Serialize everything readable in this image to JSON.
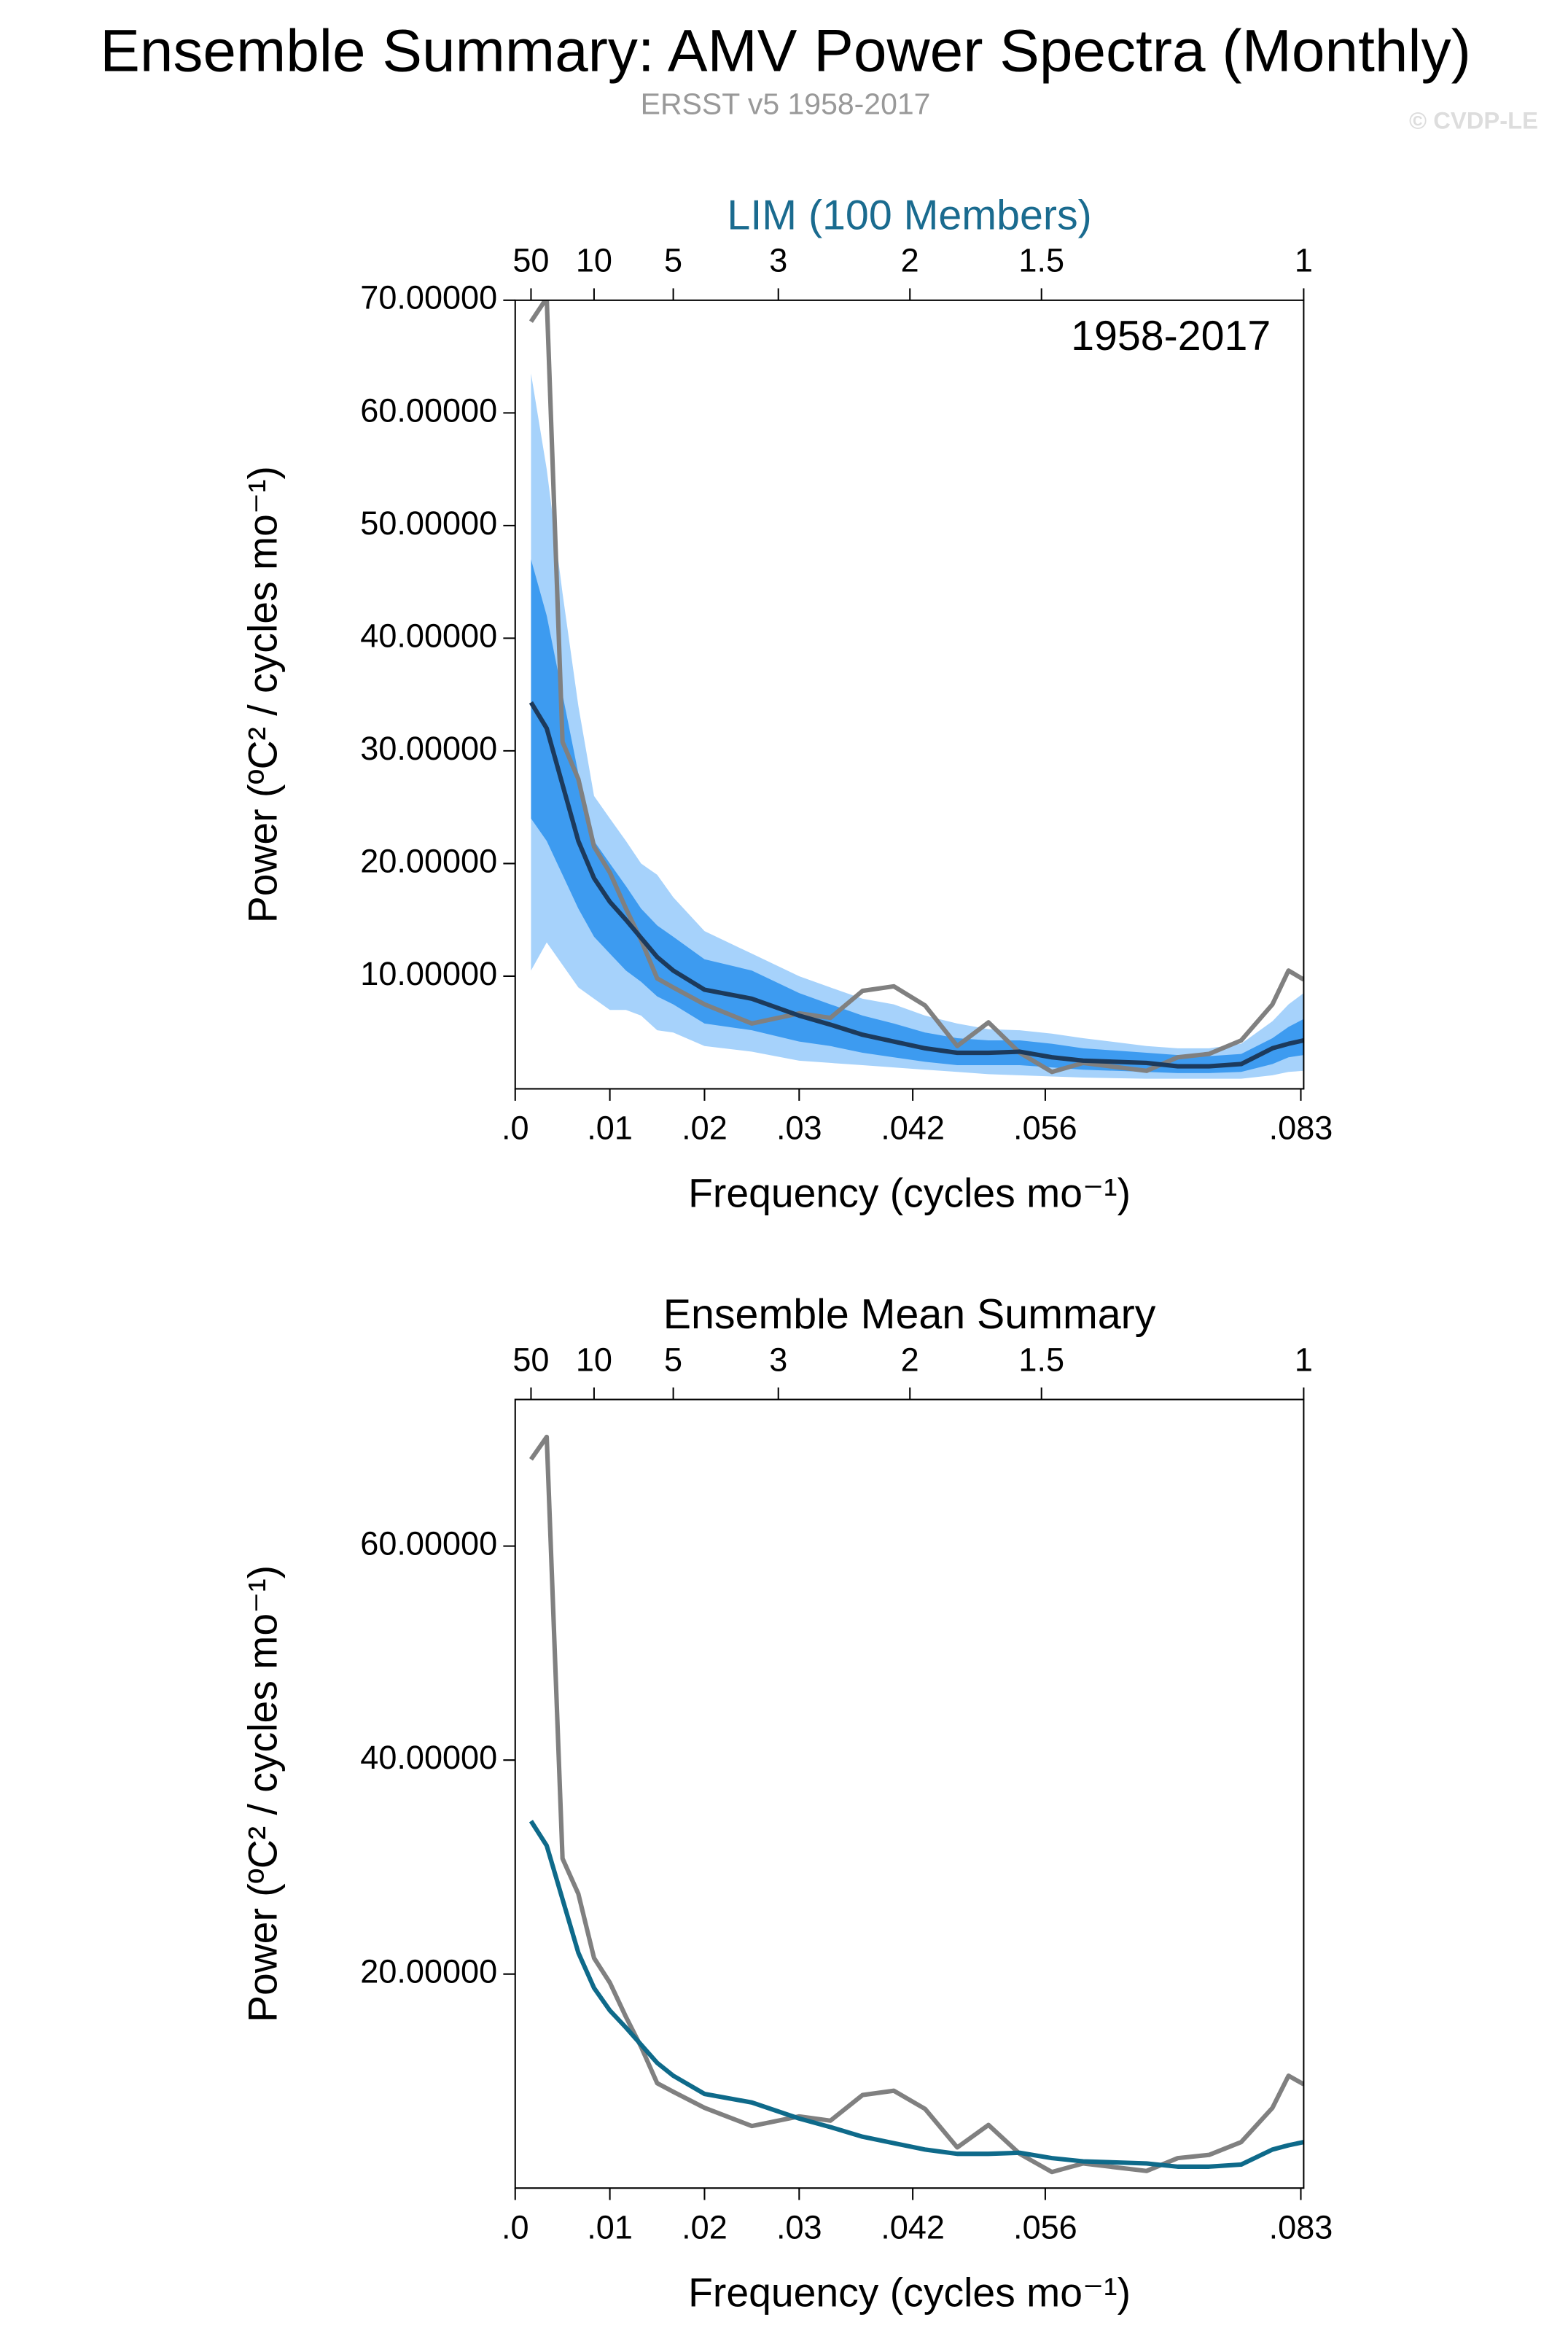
{
  "title": "Ensemble Summary: AMV Power Spectra (Monthly)",
  "subtitle": "ERSST v5 1958-2017",
  "watermark": "© CVDP-LE",
  "chart_data": [
    {
      "type": "spectrum",
      "title": "LIM (100 Members)",
      "title_color": "#1a6b8f",
      "annotation": "1958-2017",
      "xlabel": "Frequency (cycles mo⁻¹)",
      "ylabel": "Power (ºC² / cycles mo⁻¹)",
      "xlim": [
        0,
        0.0833
      ],
      "ylim": [
        0,
        70
      ],
      "xticks": [
        {
          "value": 0,
          "label": ".0"
        },
        {
          "value": 0.01,
          "label": ".01"
        },
        {
          "value": 0.02,
          "label": ".02"
        },
        {
          "value": 0.03,
          "label": ".03"
        },
        {
          "value": 0.042,
          "label": ".042"
        },
        {
          "value": 0.056,
          "label": ".056"
        },
        {
          "value": 0.083,
          "label": ".083"
        }
      ],
      "top_xticks": [
        {
          "value": 0.00167,
          "label": "50"
        },
        {
          "value": 0.00833,
          "label": "10"
        },
        {
          "value": 0.0167,
          "label": "5"
        },
        {
          "value": 0.0278,
          "label": "3"
        },
        {
          "value": 0.0417,
          "label": "2"
        },
        {
          "value": 0.0556,
          "label": "1.5"
        },
        {
          "value": 0.0833,
          "label": "1"
        }
      ],
      "yticks": [
        {
          "value": 10,
          "label": "10.00000"
        },
        {
          "value": 20,
          "label": "20.00000"
        },
        {
          "value": 30,
          "label": "30.00000"
        },
        {
          "value": 40,
          "label": "40.00000"
        },
        {
          "value": 50,
          "label": "50.00000"
        },
        {
          "value": 60,
          "label": "60.00000"
        },
        {
          "value": 70,
          "label": "70.00000"
        }
      ],
      "x": [
        0.00167,
        0.00333,
        0.005,
        0.00667,
        0.00833,
        0.01,
        0.0117,
        0.0133,
        0.015,
        0.0167,
        0.02,
        0.025,
        0.03,
        0.0333,
        0.0367,
        0.04,
        0.0433,
        0.0467,
        0.05,
        0.0533,
        0.0567,
        0.06,
        0.0667,
        0.07,
        0.0733,
        0.0767,
        0.08,
        0.0817,
        0.0833
      ],
      "bands": [
        {
          "color": "#a6d2fb",
          "upper": [
            63.5,
            55,
            44,
            34,
            26,
            24,
            22,
            20,
            19,
            17,
            14,
            12,
            10,
            9,
            8,
            7.5,
            6.5,
            5.8,
            5.3,
            5.2,
            4.9,
            4.5,
            3.8,
            3.6,
            3.6,
            4,
            6,
            7.5,
            8.5
          ],
          "lower": [
            10.5,
            13,
            11,
            9,
            8,
            7,
            7,
            6.5,
            5.2,
            5,
            3.8,
            3.3,
            2.5,
            2.3,
            2.1,
            1.9,
            1.7,
            1.5,
            1.3,
            1.2,
            1.1,
            1.0,
            0.9,
            0.9,
            0.9,
            0.9,
            1.2,
            1.5,
            1.6
          ]
        },
        {
          "color": "#3d9bf0",
          "upper": [
            47,
            42,
            35,
            28,
            22,
            20,
            18,
            16,
            14.5,
            13.5,
            11.5,
            10.5,
            8.5,
            7.5,
            6.5,
            5.8,
            5,
            4.5,
            4.3,
            4.3,
            4,
            3.6,
            3.2,
            3,
            2.9,
            3.1,
            4.5,
            5.5,
            6.2
          ],
          "lower": [
            24,
            22,
            19,
            16,
            13.5,
            12,
            10.5,
            9.5,
            8.2,
            7.5,
            5.8,
            5.2,
            4.2,
            3.8,
            3.2,
            2.8,
            2.4,
            2.1,
            2.1,
            2.1,
            1.9,
            1.7,
            1.5,
            1.4,
            1.4,
            1.5,
            2.2,
            2.8,
            3.0
          ]
        }
      ],
      "series": [
        {
          "color": "#808080",
          "values": [
            68.1,
            70.2,
            30.8,
            27.5,
            21.5,
            19.2,
            16,
            13.2,
            9.8,
            9.0,
            7.5,
            5.8,
            6.7,
            6.3,
            8.7,
            9.1,
            7.4,
            3.8,
            5.9,
            3.2,
            1.5,
            2.3,
            1.6,
            2.8,
            3.1,
            4.3,
            7.5,
            10.5,
            9.7
          ]
        },
        {
          "color": "#1c3a5c",
          "values": [
            34.3,
            32,
            27,
            22,
            18.7,
            16.6,
            15,
            13.4,
            11.7,
            10.5,
            8.8,
            8.0,
            6.5,
            5.7,
            4.8,
            4.2,
            3.6,
            3.2,
            3.2,
            3.3,
            2.8,
            2.5,
            2.3,
            2.0,
            2.0,
            2.2,
            3.6,
            4.0,
            4.3
          ]
        }
      ]
    },
    {
      "type": "spectrum",
      "title": "Ensemble Mean Summary",
      "title_color": "#000000",
      "xlabel": "Frequency (cycles mo⁻¹)",
      "ylabel": "Power (ºC² / cycles mo⁻¹)",
      "xlim": [
        0,
        0.0833
      ],
      "ylim": [
        0,
        73.7
      ],
      "xticks": [
        {
          "value": 0,
          "label": ".0"
        },
        {
          "value": 0.01,
          "label": ".01"
        },
        {
          "value": 0.02,
          "label": ".02"
        },
        {
          "value": 0.03,
          "label": ".03"
        },
        {
          "value": 0.042,
          "label": ".042"
        },
        {
          "value": 0.056,
          "label": ".056"
        },
        {
          "value": 0.083,
          "label": ".083"
        }
      ],
      "top_xticks": [
        {
          "value": 0.00167,
          "label": "50"
        },
        {
          "value": 0.00833,
          "label": "10"
        },
        {
          "value": 0.0167,
          "label": "5"
        },
        {
          "value": 0.0278,
          "label": "3"
        },
        {
          "value": 0.0417,
          "label": "2"
        },
        {
          "value": 0.0556,
          "label": "1.5"
        },
        {
          "value": 0.0833,
          "label": "1"
        }
      ],
      "yticks": [
        {
          "value": 20,
          "label": "20.00000"
        },
        {
          "value": 40,
          "label": "40.00000"
        },
        {
          "value": 60,
          "label": "60.00000"
        }
      ],
      "x": [
        0.00167,
        0.00333,
        0.005,
        0.00667,
        0.00833,
        0.01,
        0.0117,
        0.0133,
        0.015,
        0.0167,
        0.02,
        0.025,
        0.03,
        0.0333,
        0.0367,
        0.04,
        0.0433,
        0.0467,
        0.05,
        0.0533,
        0.0567,
        0.06,
        0.0667,
        0.07,
        0.0733,
        0.0767,
        0.08,
        0.0817,
        0.0833
      ],
      "series": [
        {
          "color": "#808080",
          "values": [
            68.1,
            70.2,
            30.8,
            27.5,
            21.5,
            19.2,
            16,
            13.2,
            9.8,
            9.0,
            7.5,
            5.8,
            6.7,
            6.3,
            8.7,
            9.1,
            7.4,
            3.8,
            5.9,
            3.2,
            1.5,
            2.3,
            1.6,
            2.8,
            3.1,
            4.3,
            7.5,
            10.5,
            9.7
          ]
        },
        {
          "color": "#0e6a8a",
          "values": [
            34.3,
            32,
            27,
            22,
            18.7,
            16.6,
            15,
            13.4,
            11.7,
            10.5,
            8.8,
            8.0,
            6.5,
            5.7,
            4.8,
            4.2,
            3.6,
            3.2,
            3.2,
            3.3,
            2.8,
            2.5,
            2.3,
            2.0,
            2.0,
            2.2,
            3.6,
            4.0,
            4.3
          ]
        }
      ]
    }
  ]
}
